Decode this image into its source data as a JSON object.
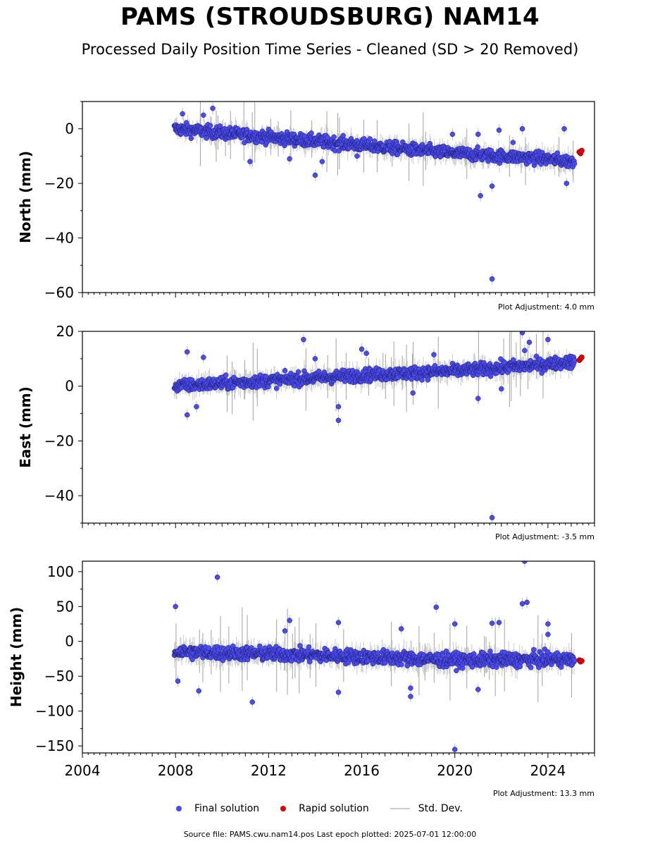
{
  "title": "PAMS (STROUDSBURG) NAM14",
  "subtitle": "Processed Daily Position Time Series - Cleaned (SD > 20 Removed)",
  "source_text": "Source file: PAMS.cwu.nam14.pos  Last epoch plotted: 2025-07-01 12:00:00",
  "legend": {
    "final": "Final solution",
    "rapid": "Rapid solution",
    "std": "Std. Dev."
  },
  "colors": {
    "final": "#4b4bf5",
    "rapid": "#e00000",
    "std": "#bdbdbd"
  },
  "chart_data": [
    {
      "type": "scatter",
      "name": "north",
      "ylabel": "North (mm)",
      "adjustment": "Plot Adjustment: 4.0 mm",
      "xlim": [
        2004,
        2026
      ],
      "ylim": [
        -60,
        10
      ],
      "yticks": [
        0,
        -20,
        -40,
        -60
      ],
      "trend": [
        [
          2008.0,
          0.0
        ],
        [
          2012.0,
          -3.0
        ],
        [
          2016.0,
          -6.0
        ],
        [
          2020.0,
          -9.0
        ],
        [
          2024.0,
          -11.0
        ],
        [
          2025.0,
          -12.0
        ]
      ],
      "outliers": [
        [
          2008.3,
          5.5
        ],
        [
          2009.2,
          5.0
        ],
        [
          2009.6,
          7.5
        ],
        [
          2011.2,
          -12.0
        ],
        [
          2012.9,
          -11.0
        ],
        [
          2014.0,
          -17.0
        ],
        [
          2014.3,
          -12.0
        ],
        [
          2015.8,
          -10.0
        ],
        [
          2019.9,
          -2.0
        ],
        [
          2021.0,
          -2.0
        ],
        [
          2021.1,
          -24.5
        ],
        [
          2021.6,
          -21.0
        ],
        [
          2021.9,
          -0.5
        ],
        [
          2022.5,
          -5.0
        ],
        [
          2022.9,
          0.0
        ],
        [
          2024.7,
          0.0
        ],
        [
          2024.8,
          -20.0
        ],
        [
          2021.6,
          -55.0
        ]
      ],
      "rapid": [
        [
          2025.35,
          -8.5
        ],
        [
          2025.4,
          -9.0
        ],
        [
          2025.45,
          -8.0
        ]
      ]
    },
    {
      "type": "scatter",
      "name": "east",
      "ylabel": "East (mm)",
      "adjustment": "Plot Adjustment: -3.5 mm",
      "xlim": [
        2004,
        2026
      ],
      "ylim": [
        -50,
        20
      ],
      "yticks": [
        20,
        0,
        -20,
        -40
      ],
      "trend": [
        [
          2008.0,
          0.0
        ],
        [
          2012.0,
          2.0
        ],
        [
          2016.0,
          4.0
        ],
        [
          2020.0,
          5.5
        ],
        [
          2024.0,
          8.0
        ],
        [
          2025.0,
          9.0
        ]
      ],
      "outliers": [
        [
          2008.5,
          12.5
        ],
        [
          2008.5,
          -10.5
        ],
        [
          2008.9,
          -7.5
        ],
        [
          2009.2,
          10.5
        ],
        [
          2013.5,
          17.0
        ],
        [
          2014.0,
          10.0
        ],
        [
          2015.0,
          -12.5
        ],
        [
          2015.0,
          -7.5
        ],
        [
          2016.0,
          13.5
        ],
        [
          2016.2,
          12.0
        ],
        [
          2018.2,
          -2.5
        ],
        [
          2019.1,
          11.5
        ],
        [
          2021.0,
          -4.5
        ],
        [
          2021.6,
          -48.0
        ],
        [
          2022.0,
          -1.0
        ],
        [
          2022.9,
          19.5
        ],
        [
          2023.0,
          13.0
        ],
        [
          2023.2,
          16.0
        ],
        [
          2024.0,
          17.0
        ],
        [
          2025.0,
          6.5
        ]
      ],
      "rapid": [
        [
          2025.35,
          9.5
        ],
        [
          2025.4,
          10.0
        ],
        [
          2025.45,
          10.5
        ]
      ]
    },
    {
      "type": "scatter",
      "name": "height",
      "ylabel": "Height (mm)",
      "adjustment": "Plot Adjustment: 13.3 mm",
      "xlim": [
        2004,
        2026
      ],
      "ylim": [
        -160,
        115
      ],
      "yticks": [
        100,
        50,
        0,
        -50,
        -100,
        -150
      ],
      "xticks": [
        2004,
        2008,
        2012,
        2016,
        2020,
        2024
      ],
      "trend": [
        [
          2008.0,
          -15.0
        ],
        [
          2012.0,
          -18.0
        ],
        [
          2016.0,
          -22.0
        ],
        [
          2020.0,
          -27.0
        ],
        [
          2024.0,
          -26.0
        ],
        [
          2025.0,
          -26.0
        ]
      ],
      "outliers": [
        [
          2008.0,
          50.0
        ],
        [
          2008.1,
          -57.0
        ],
        [
          2009.0,
          -71.0
        ],
        [
          2009.8,
          92.0
        ],
        [
          2011.3,
          -87.0
        ],
        [
          2012.9,
          30.0
        ],
        [
          2012.7,
          15.0
        ],
        [
          2015.0,
          27.0
        ],
        [
          2015.0,
          -73.0
        ],
        [
          2017.7,
          18.0
        ],
        [
          2018.1,
          -67.0
        ],
        [
          2018.1,
          -79.0
        ],
        [
          2019.2,
          49.0
        ],
        [
          2020.0,
          25.0
        ],
        [
          2020.0,
          -155.0
        ],
        [
          2021.0,
          -69.0
        ],
        [
          2021.6,
          26.0
        ],
        [
          2021.9,
          27.0
        ],
        [
          2022.9,
          54.0
        ],
        [
          2023.1,
          56.0
        ],
        [
          2023.0,
          115.0
        ],
        [
          2024.0,
          25.0
        ],
        [
          2024.0,
          10.0
        ]
      ],
      "rapid": [
        [
          2025.35,
          -27.0
        ],
        [
          2025.4,
          -29.0
        ],
        [
          2025.45,
          -28.0
        ]
      ]
    }
  ]
}
